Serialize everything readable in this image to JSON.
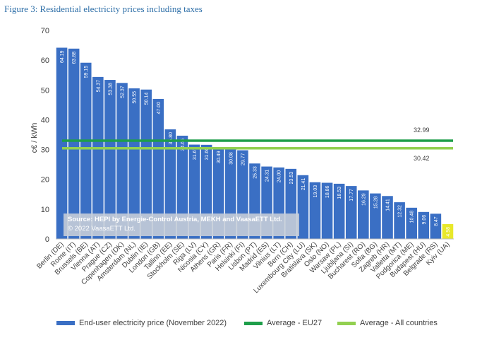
{
  "figure_title": "Figure 3: Residential electricity prices including taxes",
  "source": {
    "line1": "Source: HEPI by Energie-Control Austria, MEKH and VaasaETT Ltd.",
    "line2": "© 2022 VaasaETT Ltd."
  },
  "colors": {
    "bar": "#3a6fc4",
    "highlight_bar": "#e8e82a",
    "avg_eu27": "#1e9e4a",
    "avg_all": "#92d050",
    "grid": "#d9d9d9"
  },
  "chart_data": {
    "type": "bar",
    "title": "",
    "ylabel": "c€ / kWh",
    "xlabel": "",
    "ylim": [
      0,
      70
    ],
    "yticks": [
      0,
      10,
      20,
      30,
      40,
      50,
      60,
      70
    ],
    "grid": false,
    "legend_position": "bottom",
    "categories": [
      "Berlin (DE)",
      "Rome (IT)",
      "Brussels (BE)",
      "Vienna (AT)",
      "Prague (CZ)",
      "Copenhagen (DK)",
      "Amsterdam (NL)",
      "Dublin (IE)",
      "London (GB)",
      "Tallinn (EE)",
      "Stockholm (SE)",
      "Riga (LV)",
      "Nicosia (CY)",
      "Athens (GR)",
      "Paris (FR)",
      "Helsinki (FI)",
      "Lisbon (PT)",
      "Madrid (ES)",
      "Vilnius (LT)",
      "Bern (CH)",
      "Luxembourg City (LU)",
      "Bratislava (SK)",
      "Oslo (NO)",
      "Warsaw (PL)",
      "Ljubljana (SI)",
      "Bucharest (RO)",
      "Sofia (BG)",
      "Zagreb (HR)",
      "Valletta (MT)",
      "Podgorica (ME)",
      "Budapest (HU)",
      "Belgrade (RS)",
      "Kyiv (UA)"
    ],
    "values": [
      64.19,
      63.88,
      59.15,
      54.37,
      53.38,
      52.37,
      50.55,
      50.14,
      47.0,
      36.8,
      34.66,
      31.67,
      31.6,
      30.49,
      30.08,
      29.77,
      25.33,
      24.31,
      24.0,
      23.53,
      21.41,
      19.03,
      18.86,
      18.53,
      17.77,
      16.29,
      15.28,
      14.41,
      12.32,
      10.48,
      9.06,
      8.47,
      4.98
    ],
    "value_labels": [
      "64.19",
      "63.88",
      "59.15",
      "54.37",
      "53.38",
      "52.37",
      "50.55",
      "50.14",
      "47.00",
      "36.80",
      "34.66",
      "31.67",
      "31.60",
      "30.49",
      "30.08",
      "29.77",
      "25.33",
      "24.31",
      "24.00",
      "23.53",
      "21.41",
      "19.03",
      "18.86",
      "18.53",
      "17.77",
      "16.29",
      "15.28",
      "14.41",
      "12.32",
      "10.48",
      "9.06",
      "8.47",
      "4.98"
    ],
    "highlight_index": 32,
    "averages": [
      {
        "name": "Average - EU27",
        "value": 32.99,
        "label": "32.99"
      },
      {
        "name": "Average - All countries",
        "value": 30.42,
        "label": "30.42"
      }
    ],
    "series": [
      {
        "name": "End-user electricity price (November 2022)"
      }
    ]
  }
}
